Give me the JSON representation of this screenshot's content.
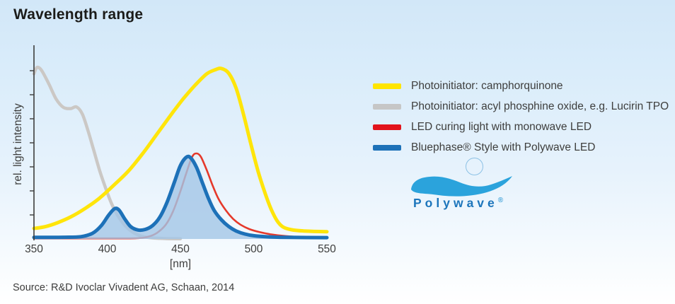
{
  "page": {
    "title": "Wavelength range",
    "source": "Source: R&D Ivoclar Vivadent AG, Schaan, 2014"
  },
  "legend": {
    "items": [
      {
        "label": "Photoinitiator: camphorquinone",
        "color": "#ffe500"
      },
      {
        "label": "Photoinitiator: acyl phosphine oxide, e.g. Lucirin TPO",
        "color": "#c6c6c6"
      },
      {
        "label": "LED curing light with monowave LED",
        "color": "#e2131b"
      },
      {
        "label": "Bluephase® Style with Polywave LED",
        "color": "#1d71b8"
      }
    ]
  },
  "logo": {
    "text": "Polywave",
    "reg": "®",
    "wave_color": "#2ba3dc",
    "text_color": "#1c75bb"
  },
  "chart_data": {
    "type": "line",
    "title": "Wavelength range",
    "xlabel": "[nm]",
    "ylabel": "rel. light intensity",
    "xlim": [
      350,
      550
    ],
    "ylim": [
      0,
      1
    ],
    "x_ticks": [
      350,
      400,
      450,
      500,
      550
    ],
    "y_tick_count": 7,
    "y_ticks_labeled": false,
    "grid": false,
    "legend_position": "right",
    "draw_order": [
      1,
      0,
      2,
      3
    ],
    "series": [
      {
        "name": "Photoinitiator: camphorquinone",
        "slug": "camphorquinone",
        "color": "#ffe50a",
        "width": 5,
        "fill": false,
        "points": [
          [
            350,
            0.055
          ],
          [
            358,
            0.065
          ],
          [
            366,
            0.085
          ],
          [
            375,
            0.115
          ],
          [
            385,
            0.16
          ],
          [
            395,
            0.215
          ],
          [
            405,
            0.285
          ],
          [
            415,
            0.36
          ],
          [
            425,
            0.455
          ],
          [
            435,
            0.56
          ],
          [
            445,
            0.665
          ],
          [
            452,
            0.735
          ],
          [
            460,
            0.805
          ],
          [
            468,
            0.865
          ],
          [
            474,
            0.887
          ],
          [
            478,
            0.893
          ],
          [
            483,
            0.868
          ],
          [
            488,
            0.79
          ],
          [
            493,
            0.655
          ],
          [
            498,
            0.5
          ],
          [
            503,
            0.355
          ],
          [
            508,
            0.235
          ],
          [
            512,
            0.155
          ],
          [
            516,
            0.095
          ],
          [
            520,
            0.063
          ],
          [
            526,
            0.048
          ],
          [
            534,
            0.042
          ],
          [
            550,
            0.038
          ]
        ]
      },
      {
        "name": "Photoinitiator: acyl phosphine oxide, e.g. Lucirin TPO",
        "slug": "lucirin-tpo",
        "color": "#cbc8c5",
        "width": 4.5,
        "fill": false,
        "points": [
          [
            350,
            0.865
          ],
          [
            352,
            0.898
          ],
          [
            355,
            0.885
          ],
          [
            360,
            0.815
          ],
          [
            365,
            0.735
          ],
          [
            370,
            0.69
          ],
          [
            375,
            0.683
          ],
          [
            379,
            0.692
          ],
          [
            383,
            0.655
          ],
          [
            387,
            0.565
          ],
          [
            391,
            0.46
          ],
          [
            395,
            0.355
          ],
          [
            399,
            0.265
          ],
          [
            403,
            0.185
          ],
          [
            407,
            0.125
          ],
          [
            412,
            0.072
          ],
          [
            417,
            0.038
          ],
          [
            423,
            0.016
          ],
          [
            430,
            0.006
          ],
          [
            440,
            0.002
          ],
          [
            450,
            0.001
          ]
        ]
      },
      {
        "name": "LED curing light with monowave LED",
        "slug": "monowave-led",
        "color": "#e5392b",
        "width": 2.6,
        "fill": false,
        "points": [
          [
            350,
            0.003
          ],
          [
            400,
            0.003
          ],
          [
            420,
            0.004
          ],
          [
            428,
            0.012
          ],
          [
            434,
            0.032
          ],
          [
            440,
            0.075
          ],
          [
            445,
            0.145
          ],
          [
            450,
            0.25
          ],
          [
            454,
            0.345
          ],
          [
            458,
            0.43
          ],
          [
            461,
            0.448
          ],
          [
            464,
            0.43
          ],
          [
            468,
            0.36
          ],
          [
            472,
            0.28
          ],
          [
            476,
            0.21
          ],
          [
            481,
            0.15
          ],
          [
            486,
            0.105
          ],
          [
            491,
            0.075
          ],
          [
            497,
            0.052
          ],
          [
            504,
            0.036
          ],
          [
            512,
            0.024
          ],
          [
            522,
            0.015
          ],
          [
            535,
            0.009
          ],
          [
            550,
            0.007
          ]
        ]
      },
      {
        "name": "Bluephase® Style with Polywave LED",
        "slug": "polywave-led",
        "color": "#1d71b8",
        "width": 5,
        "fill": true,
        "fill_color": "#a3c6e6",
        "fill_opacity": 0.8,
        "points": [
          [
            350,
            0.008
          ],
          [
            370,
            0.009
          ],
          [
            382,
            0.012
          ],
          [
            390,
            0.03
          ],
          [
            396,
            0.07
          ],
          [
            401,
            0.125
          ],
          [
            405,
            0.158
          ],
          [
            408,
            0.152
          ],
          [
            412,
            0.105
          ],
          [
            416,
            0.065
          ],
          [
            421,
            0.047
          ],
          [
            426,
            0.05
          ],
          [
            431,
            0.07
          ],
          [
            436,
            0.115
          ],
          [
            441,
            0.195
          ],
          [
            446,
            0.3
          ],
          [
            450,
            0.385
          ],
          [
            454,
            0.428
          ],
          [
            457,
            0.425
          ],
          [
            461,
            0.375
          ],
          [
            465,
            0.295
          ],
          [
            469,
            0.215
          ],
          [
            473,
            0.15
          ],
          [
            478,
            0.1
          ],
          [
            483,
            0.065
          ],
          [
            488,
            0.042
          ],
          [
            494,
            0.026
          ],
          [
            500,
            0.017
          ],
          [
            510,
            0.011
          ],
          [
            525,
            0.008
          ],
          [
            550,
            0.007
          ]
        ]
      }
    ]
  }
}
